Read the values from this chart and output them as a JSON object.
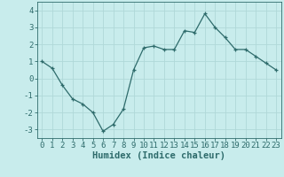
{
  "x": [
    0,
    1,
    2,
    3,
    4,
    5,
    6,
    7,
    8,
    9,
    10,
    11,
    12,
    13,
    14,
    15,
    16,
    17,
    18,
    19,
    20,
    21,
    22,
    23
  ],
  "y": [
    1.0,
    0.6,
    -0.4,
    -1.2,
    -1.5,
    -2.0,
    -3.1,
    -2.7,
    -1.8,
    0.5,
    1.8,
    1.9,
    1.7,
    1.7,
    2.8,
    2.7,
    3.8,
    3.0,
    2.4,
    1.7,
    1.7,
    1.3,
    0.9,
    0.5
  ],
  "line_color": "#2e6b6b",
  "marker": "+",
  "bg_color": "#c8ecec",
  "grid_color": "#b0d8d8",
  "tick_color": "#2e6b6b",
  "xlabel": "Humidex (Indice chaleur)",
  "xlim": [
    -0.5,
    23.5
  ],
  "ylim": [
    -3.5,
    4.5
  ],
  "yticks": [
    -3,
    -2,
    -1,
    0,
    1,
    2,
    3,
    4
  ],
  "xticks": [
    0,
    1,
    2,
    3,
    4,
    5,
    6,
    7,
    8,
    9,
    10,
    11,
    12,
    13,
    14,
    15,
    16,
    17,
    18,
    19,
    20,
    21,
    22,
    23
  ],
  "tick_fontsize": 6.5,
  "label_fontsize": 7.5
}
